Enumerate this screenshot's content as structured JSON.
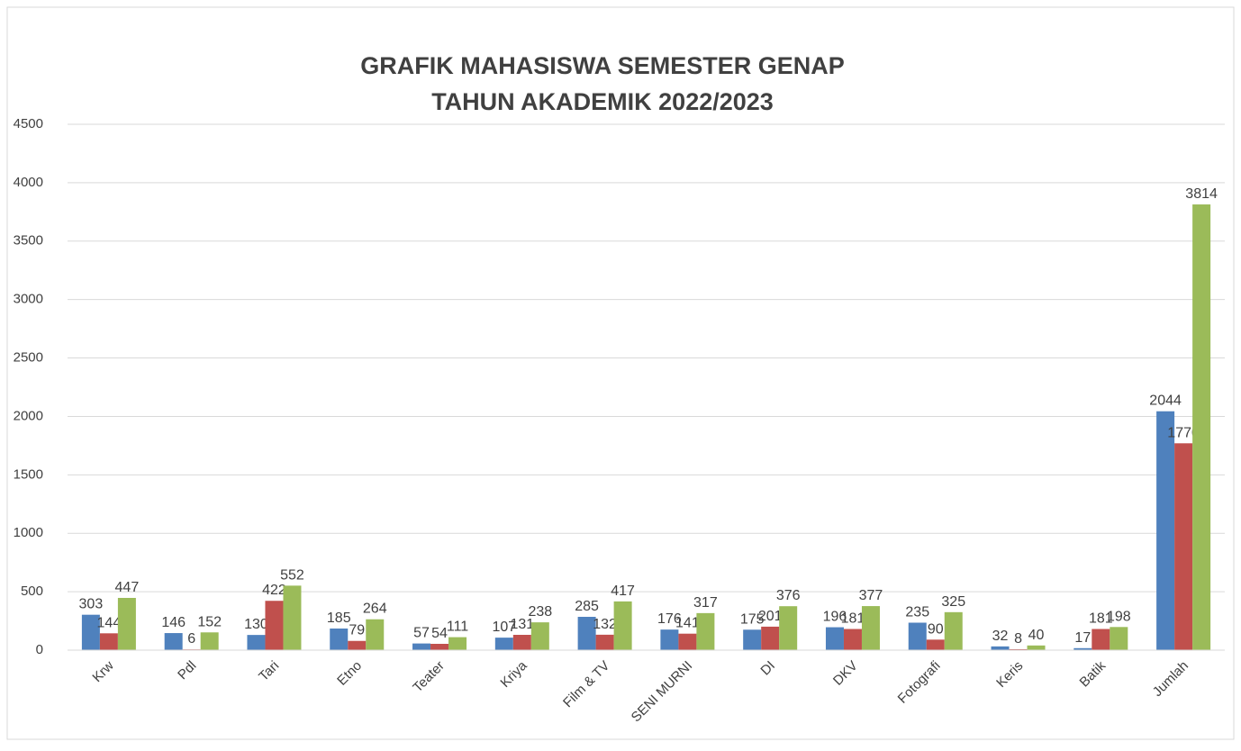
{
  "chart_data": {
    "type": "bar",
    "title": [
      "GRAFIK MAHASISWA SEMESTER GENAP",
      "TAHUN AKADEMIK 2022/2023"
    ],
    "categories": [
      "Krw",
      "Pdl",
      "Tari",
      "Etno",
      "Teater",
      "Kriya",
      "Film & TV",
      "SENI MURNI",
      "DI",
      "DKV",
      "Fotografi",
      "Keris",
      "Batik",
      "Jumlah"
    ],
    "series": [
      {
        "color": "#4f81bd",
        "values": [
          303,
          146,
          130,
          185,
          57,
          107,
          285,
          176,
          175,
          196,
          235,
          32,
          17,
          2044
        ]
      },
      {
        "color": "#c0504d",
        "values": [
          144,
          6,
          422,
          79,
          54,
          131,
          132,
          141,
          201,
          181,
          90,
          8,
          181,
          1770
        ]
      },
      {
        "color": "#9bbb59",
        "values": [
          447,
          152,
          552,
          264,
          111,
          238,
          417,
          317,
          376,
          377,
          325,
          40,
          198,
          3814
        ]
      }
    ],
    "ylim": [
      0,
      4500
    ],
    "yticks": [
      0,
      500,
      1000,
      1500,
      2000,
      2500,
      3000,
      3500,
      4000,
      4500
    ],
    "grid": true
  }
}
